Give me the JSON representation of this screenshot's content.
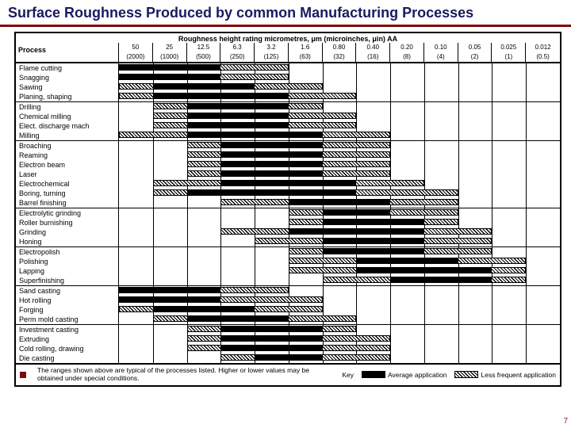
{
  "title": "Surface Roughness Produced by common Manufacturing Processes",
  "chart": {
    "type": "range-bar",
    "axis_title": "Roughness height rating micrometres, μm (microinches, μin) AA",
    "ticks_um": [
      "50",
      "25",
      "12.5",
      "6.3",
      "3.2",
      "1.6",
      "0.80",
      "0.40",
      "0.20",
      "0.10",
      "0.05",
      "0.025",
      "0.012"
    ],
    "ticks_uin": [
      "(2000)",
      "(1000)",
      "(500)",
      "(250)",
      "(125)",
      "(63)",
      "(32)",
      "(16)",
      "(8)",
      "(4)",
      "(2)",
      "(1)",
      "(0.5)"
    ],
    "n_cols": 13,
    "process_label": "Process",
    "groups": [
      {
        "rows": [
          {
            "name": "Flame cutting",
            "hatch": [
              0,
              5
            ],
            "avg": [
              0,
              3
            ]
          },
          {
            "name": "Snagging",
            "hatch": [
              0,
              5
            ],
            "avg": [
              0,
              3
            ]
          },
          {
            "name": "Sawing",
            "hatch": [
              0,
              6
            ],
            "avg": [
              1,
              4
            ]
          },
          {
            "name": "Planing, shaping",
            "hatch": [
              0,
              7
            ],
            "avg": [
              1,
              5
            ]
          }
        ]
      },
      {
        "rows": [
          {
            "name": "Drilling",
            "hatch": [
              1,
              6
            ],
            "avg": [
              2,
              5
            ]
          },
          {
            "name": "Chemical milling",
            "hatch": [
              1,
              7
            ],
            "avg": [
              2,
              5
            ]
          },
          {
            "name": "Elect. discharge mach",
            "hatch": [
              1,
              7
            ],
            "avg": [
              2,
              5
            ]
          },
          {
            "name": "Milling",
            "hatch": [
              0,
              8
            ],
            "avg": [
              2,
              6
            ]
          }
        ]
      },
      {
        "rows": [
          {
            "name": "Broaching",
            "hatch": [
              2,
              8
            ],
            "avg": [
              3,
              6
            ]
          },
          {
            "name": "Reaming",
            "hatch": [
              2,
              8
            ],
            "avg": [
              3,
              6
            ]
          },
          {
            "name": "Electron beam",
            "hatch": [
              2,
              8
            ],
            "avg": [
              3,
              6
            ]
          },
          {
            "name": "Laser",
            "hatch": [
              2,
              8
            ],
            "avg": [
              3,
              6
            ]
          },
          {
            "name": "Electrochemical",
            "hatch": [
              1,
              9
            ],
            "avg": [
              3,
              7
            ]
          },
          {
            "name": "Boring, turning",
            "hatch": [
              1,
              10
            ],
            "avg": [
              2,
              7
            ]
          },
          {
            "name": "Barrel finishing",
            "hatch": [
              3,
              10
            ],
            "avg": [
              5,
              8
            ]
          }
        ]
      },
      {
        "rows": [
          {
            "name": "Electrolytic grinding",
            "hatch": [
              5,
              10
            ],
            "avg": [
              6,
              8
            ]
          },
          {
            "name": "Roller burnishing",
            "hatch": [
              5,
              10
            ],
            "avg": [
              6,
              9
            ]
          },
          {
            "name": "Grinding",
            "hatch": [
              3,
              11
            ],
            "avg": [
              5,
              9
            ]
          },
          {
            "name": "Honing",
            "hatch": [
              4,
              11
            ],
            "avg": [
              6,
              9
            ]
          }
        ]
      },
      {
        "rows": [
          {
            "name": "Electropolish",
            "hatch": [
              5,
              11
            ],
            "avg": [
              6,
              9
            ]
          },
          {
            "name": "Polishing",
            "hatch": [
              5,
              12
            ],
            "avg": [
              7,
              10
            ]
          },
          {
            "name": "Lapping",
            "hatch": [
              5,
              12
            ],
            "avg": [
              7,
              11
            ]
          },
          {
            "name": "Superfinishing",
            "hatch": [
              6,
              12
            ],
            "avg": [
              8,
              11
            ]
          }
        ]
      },
      {
        "rows": [
          {
            "name": "Sand casting",
            "hatch": [
              0,
              5
            ],
            "avg": [
              0,
              3
            ]
          },
          {
            "name": "Hot rolling",
            "hatch": [
              0,
              6
            ],
            "avg": [
              0,
              3
            ]
          },
          {
            "name": "Forging",
            "hatch": [
              0,
              6
            ],
            "avg": [
              1,
              4
            ]
          },
          {
            "name": "Perm mold casting",
            "hatch": [
              1,
              7
            ],
            "avg": [
              2,
              5
            ]
          }
        ]
      },
      {
        "rows": [
          {
            "name": "Investment casting",
            "hatch": [
              2,
              7
            ],
            "avg": [
              3,
              6
            ]
          },
          {
            "name": "Extruding",
            "hatch": [
              2,
              8
            ],
            "avg": [
              3,
              6
            ]
          },
          {
            "name": "Cold rolling, drawing",
            "hatch": [
              2,
              8
            ],
            "avg": [
              3,
              6
            ]
          },
          {
            "name": "Die casting",
            "hatch": [
              3,
              8
            ],
            "avg": [
              4,
              6
            ]
          }
        ]
      }
    ],
    "note": "The ranges shown above are typical of the processes listed.\nHigher or lower values may be obtained under special conditions.",
    "key_label": "Key",
    "key_avg": "Average application",
    "key_less": "Less frequent application",
    "colors": {
      "border": "#000000",
      "solid": "#000000",
      "bg": "#ffffff",
      "title": "#1a1a60",
      "rule": "#7a0d0d"
    }
  },
  "page_no": "7"
}
